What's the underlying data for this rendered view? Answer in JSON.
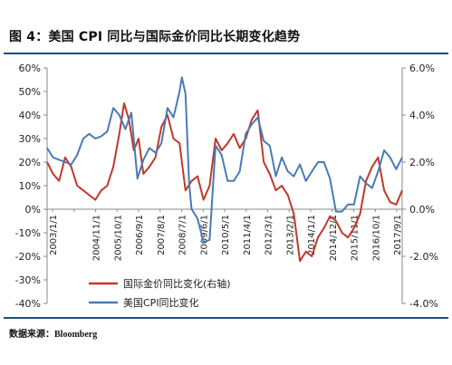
{
  "header": {
    "title": "图 4：美国 CPI 同比与国际金价同比长期变化趋势"
  },
  "footer": {
    "source": "数据来源：Bloomberg"
  },
  "colors": {
    "gold_series": "#c0392b",
    "cpi_series": "#4a7ab5",
    "rule": "#1f4e79",
    "axis": "#888888"
  },
  "chart_data": {
    "type": "line",
    "left_axis": {
      "ylim": [
        -40,
        60
      ],
      "ticks": [
        "60%",
        "50%",
        "40%",
        "30%",
        "20%",
        "10%",
        "0%",
        "-10%",
        "-20%",
        "-30%",
        "-40%"
      ],
      "tick_values": [
        60,
        50,
        40,
        30,
        20,
        10,
        0,
        -10,
        -20,
        -30,
        -40
      ]
    },
    "right_axis": {
      "ylim": [
        -4.0,
        6.0
      ],
      "ticks": [
        "6.0%",
        "4.0%",
        "2.0%",
        "0.0%",
        "-2.0%",
        "-4.0%"
      ],
      "tick_values": [
        6,
        4,
        2,
        0,
        -2,
        -4
      ]
    },
    "x_ticks": [
      "2003/1/1",
      "2003/9/1",
      "2004/5/1",
      "2005/1/1",
      "2005/9/1",
      "2006/5/1",
      "2007/1/1",
      "2007/9/1",
      "2008/5/1",
      "2009/1/1",
      "2009/9/1",
      "2010/5/1",
      "2011/1/1",
      "2011/9/1",
      "2012/5/1",
      "2013/1/1",
      "2013/9/1",
      "2014/5/1",
      "2015/1/1",
      "2015/9/1",
      "2016/5/1",
      "2017/1/1",
      "2017/9/1"
    ],
    "x_tick_labels": [
      "2003/1/1",
      "",
      "2004/11/1",
      "2005/10/1",
      "2006/9/1",
      "2007/8/1",
      "2008/7/1",
      "2009/6/1",
      "2010/5/1",
      "2011/4/1",
      "2012/3/1",
      "2013/2/1",
      "2014/1/1",
      "2014/12/1",
      "2015/11/1",
      "2016/10/1",
      "2017/9/1"
    ],
    "x_range": [
      2003.0,
      2017.75
    ],
    "legend": [
      "国际金价同比变化(右轴)",
      "美国CPI同比变化"
    ],
    "series": [
      {
        "name": "国际金价同比变化(右轴)",
        "axis": "left",
        "x": [
          2003.0,
          2003.25,
          2003.5,
          2003.75,
          2004.0,
          2004.25,
          2004.5,
          2004.75,
          2005.0,
          2005.25,
          2005.5,
          2005.75,
          2006.0,
          2006.2,
          2006.4,
          2006.6,
          2006.8,
          2007.0,
          2007.25,
          2007.5,
          2007.75,
          2008.0,
          2008.25,
          2008.5,
          2008.75,
          2009.0,
          2009.25,
          2009.5,
          2009.75,
          2010.0,
          2010.25,
          2010.5,
          2010.75,
          2011.0,
          2011.25,
          2011.5,
          2011.75,
          2012.0,
          2012.25,
          2012.5,
          2012.75,
          2013.0,
          2013.25,
          2013.5,
          2013.75,
          2014.0,
          2014.25,
          2014.5,
          2014.75,
          2015.0,
          2015.25,
          2015.5,
          2015.75,
          2016.0,
          2016.25,
          2016.5,
          2016.75,
          2017.0,
          2017.25,
          2017.5,
          2017.75
        ],
        "values": [
          20,
          15,
          12,
          22,
          18,
          10,
          8,
          6,
          4,
          8,
          10,
          18,
          32,
          45,
          38,
          25,
          30,
          15,
          18,
          22,
          35,
          40,
          30,
          28,
          8,
          12,
          14,
          4,
          10,
          30,
          25,
          28,
          32,
          26,
          30,
          38,
          42,
          20,
          15,
          8,
          10,
          6,
          -2,
          -22,
          -18,
          -20,
          -12,
          -8,
          -3,
          -5,
          -10,
          -12,
          -8,
          -2,
          12,
          18,
          22,
          8,
          3,
          2,
          8
        ]
      },
      {
        "name": "美国CPI同比变化",
        "axis": "right",
        "x": [
          2003.0,
          2003.25,
          2003.5,
          2003.75,
          2004.0,
          2004.25,
          2004.5,
          2004.75,
          2005.0,
          2005.25,
          2005.5,
          2005.75,
          2006.0,
          2006.25,
          2006.5,
          2006.75,
          2007.0,
          2007.25,
          2007.5,
          2007.75,
          2008.0,
          2008.25,
          2008.5,
          2008.6,
          2008.75,
          2008.9,
          2009.0,
          2009.25,
          2009.5,
          2009.75,
          2010.0,
          2010.25,
          2010.5,
          2010.75,
          2011.0,
          2011.25,
          2011.5,
          2011.75,
          2012.0,
          2012.25,
          2012.5,
          2012.75,
          2013.0,
          2013.25,
          2013.5,
          2013.75,
          2014.0,
          2014.25,
          2014.5,
          2014.75,
          2015.0,
          2015.25,
          2015.5,
          2015.75,
          2016.0,
          2016.25,
          2016.5,
          2016.75,
          2017.0,
          2017.25,
          2017.5,
          2017.75
        ],
        "values": [
          2.6,
          2.2,
          2.1,
          2.0,
          1.9,
          2.3,
          3.0,
          3.2,
          3.0,
          3.1,
          3.3,
          4.3,
          4.0,
          3.4,
          4.1,
          1.3,
          2.1,
          2.6,
          2.4,
          2.8,
          4.3,
          3.9,
          5.0,
          5.6,
          4.9,
          1.1,
          0.0,
          -0.4,
          -1.4,
          -1.3,
          2.7,
          2.3,
          1.2,
          1.2,
          1.6,
          3.2,
          3.6,
          3.9,
          2.9,
          2.7,
          1.4,
          2.2,
          1.6,
          1.4,
          1.9,
          1.2,
          1.6,
          2.0,
          2.0,
          1.3,
          -0.1,
          -0.1,
          0.2,
          0.2,
          1.4,
          1.1,
          0.9,
          1.6,
          2.5,
          2.2,
          1.7,
          2.2
        ]
      }
    ]
  }
}
